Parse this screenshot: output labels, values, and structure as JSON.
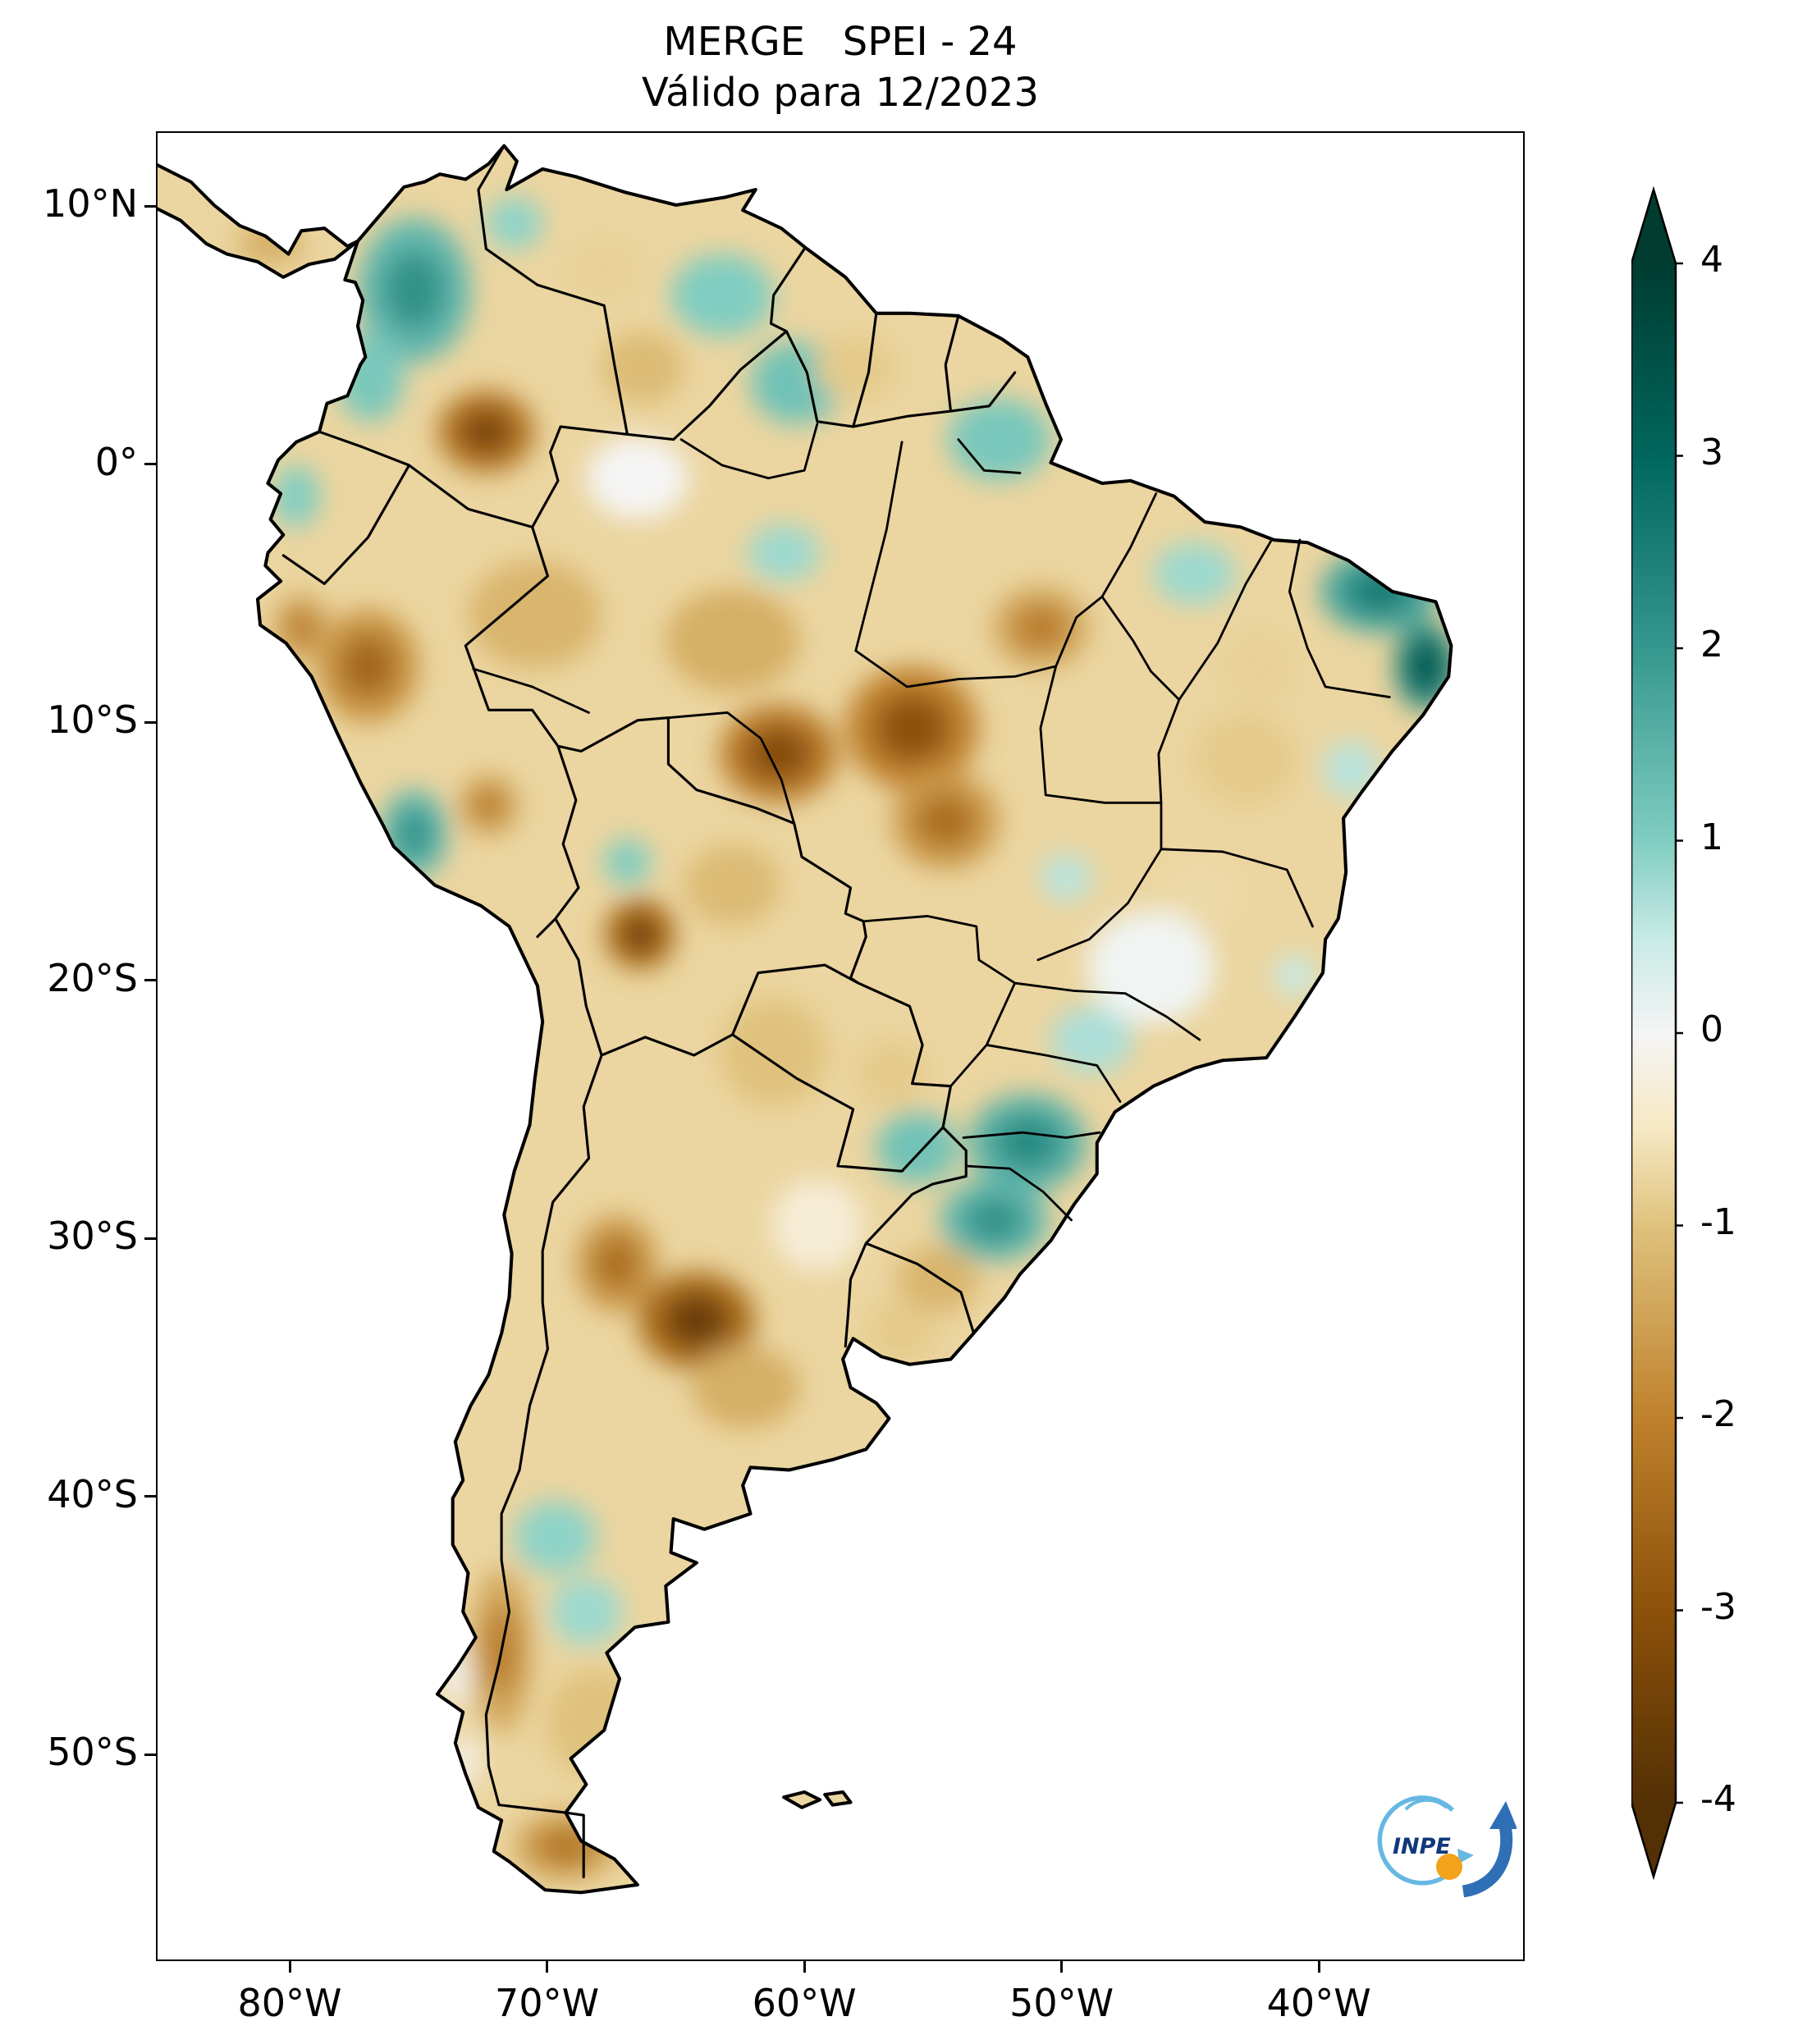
{
  "figure": {
    "title": "MERGE   SPEI - 24",
    "subtitle": "Válido para 12/2023"
  },
  "logo": {
    "text": "INPE"
  },
  "chart_data": {
    "type": "heatmap",
    "title": "MERGE   SPEI - 24",
    "subtitle": "Válido para 12/2023",
    "description": "SPEI-24 standardized drought index map over South America, valid for 12/2023, MERGE product",
    "base_spei": -0.75,
    "x_axis": {
      "tick_labels": [
        "80°W",
        "70°W",
        "60°W",
        "50°W",
        "40°W"
      ],
      "tick_lons": [
        -80,
        -70,
        -60,
        -50,
        -40
      ],
      "lon_range": [
        -85.2,
        -32.0
      ]
    },
    "y_axis": {
      "tick_labels": [
        "10°N",
        "0°",
        "10°S",
        "20°S",
        "30°S",
        "40°S",
        "50°S"
      ],
      "tick_lats": [
        10,
        0,
        -10,
        -20,
        -30,
        -40,
        -50
      ],
      "lat_range": [
        12.9,
        -58.0
      ]
    },
    "colorbar": {
      "vmin": -4,
      "vmax": 4,
      "extend": "both",
      "tick_labels": [
        "4",
        "3",
        "2",
        "1",
        "0",
        "-1",
        "-2",
        "-3",
        "-4"
      ],
      "tick_values": [
        4,
        3,
        2,
        1,
        0,
        -1,
        -2,
        -3,
        -4
      ],
      "colormap_stops": [
        {
          "value": -4,
          "color": "#543005"
        },
        {
          "value": -3,
          "color": "#8c510a"
        },
        {
          "value": -2,
          "color": "#bf812d"
        },
        {
          "value": -1,
          "color": "#dfc27d"
        },
        {
          "value": -0.5,
          "color": "#f6e8c3"
        },
        {
          "value": 0,
          "color": "#f5f5f5"
        },
        {
          "value": 0.5,
          "color": "#c7eae5"
        },
        {
          "value": 1,
          "color": "#80cdc1"
        },
        {
          "value": 2,
          "color": "#35978f"
        },
        {
          "value": 3,
          "color": "#01665e"
        },
        {
          "value": 4,
          "color": "#003c30"
        }
      ]
    },
    "regions": [
      {
        "name": "colombia-andes",
        "lon": -75.2,
        "lat": 6.8,
        "rx": 2.2,
        "ry": 2.8,
        "spei": 1.4
      },
      {
        "name": "colombia-pacific",
        "lon": -76.9,
        "lat": 3.4,
        "rx": 1.3,
        "ry": 1.7,
        "spei": 1.1
      },
      {
        "name": "ecuador-coast",
        "lon": -79.8,
        "lat": -1.2,
        "rx": 0.9,
        "ry": 1.2,
        "spei": 1.0
      },
      {
        "name": "maracaibo-venezuela",
        "lon": -71.3,
        "lat": 9.4,
        "rx": 1.1,
        "ry": 1.0,
        "spei": 0.9
      },
      {
        "name": "venezuela-northeast",
        "lon": -63.2,
        "lat": 6.6,
        "rx": 2.0,
        "ry": 1.6,
        "spei": 1.0
      },
      {
        "name": "roraima-guyana-border",
        "lon": -60.3,
        "lat": 3.2,
        "rx": 1.8,
        "ry": 1.6,
        "spei": 1.2
      },
      {
        "name": "amapa-north-para",
        "lon": -52.4,
        "lat": 1.0,
        "rx": 2.0,
        "ry": 1.6,
        "spei": 1.1
      },
      {
        "name": "central-amazon",
        "lon": -60.8,
        "lat": -3.4,
        "rx": 1.4,
        "ry": 1.1,
        "spei": 0.8
      },
      {
        "name": "maranhao",
        "lon": -44.8,
        "lat": -4.2,
        "rx": 1.6,
        "ry": 1.2,
        "spei": 0.8
      },
      {
        "name": "ceara-coast",
        "lon": -37.6,
        "lat": -4.9,
        "rx": 2.3,
        "ry": 1.6,
        "spei": 1.7
      },
      {
        "name": "pernambuco-coast",
        "lon": -35.8,
        "lat": -7.8,
        "rx": 1.2,
        "ry": 1.7,
        "spei": 2.3
      },
      {
        "name": "bahia-coast",
        "lon": -38.7,
        "lat": -11.8,
        "rx": 1.1,
        "ry": 1.1,
        "spei": 0.6
      },
      {
        "name": "peru-south-andes",
        "lon": -75.2,
        "lat": -14.3,
        "rx": 1.3,
        "ry": 1.7,
        "spei": 1.4
      },
      {
        "name": "bolivia-santa-cruz",
        "lon": -66.9,
        "lat": -15.4,
        "rx": 0.9,
        "ry": 0.9,
        "spei": 1.0
      },
      {
        "name": "goias",
        "lon": -49.8,
        "lat": -16.0,
        "rx": 1.0,
        "ry": 0.9,
        "spei": 0.6
      },
      {
        "name": "espirito-santo-coast",
        "lon": -40.9,
        "lat": -19.8,
        "rx": 0.8,
        "ry": 0.8,
        "spei": 0.5
      },
      {
        "name": "sao-paulo-interior",
        "lon": -48.8,
        "lat": -22.3,
        "rx": 1.6,
        "ry": 1.3,
        "spei": 0.7
      },
      {
        "name": "parana-santa-catarina",
        "lon": -51.3,
        "lat": -26.3,
        "rx": 2.3,
        "ry": 1.9,
        "spei": 1.5
      },
      {
        "name": "misiones-east-paraguay",
        "lon": -55.6,
        "lat": -26.5,
        "rx": 1.6,
        "ry": 1.4,
        "spei": 1.2
      },
      {
        "name": "rio-grande-do-sul",
        "lon": -52.6,
        "lat": -29.3,
        "rx": 2.1,
        "ry": 1.6,
        "spei": 1.4
      },
      {
        "name": "north-patagonia",
        "lon": -69.7,
        "lat": -41.6,
        "rx": 1.6,
        "ry": 1.4,
        "spei": 0.9
      },
      {
        "name": "central-patagonia",
        "lon": -68.5,
        "lat": -44.5,
        "rx": 1.4,
        "ry": 1.3,
        "spei": 0.8
      },
      {
        "name": "costa-rica-panama",
        "lon": -80.8,
        "lat": 8.6,
        "rx": 1.3,
        "ry": 0.8,
        "spei": -1.3
      },
      {
        "name": "venezuela-llanos",
        "lon": -67.8,
        "lat": 7.6,
        "rx": 1.6,
        "ry": 1.2,
        "spei": -0.8
      },
      {
        "name": "guyana-interior",
        "lon": -58.0,
        "lat": 3.8,
        "rx": 1.6,
        "ry": 1.3,
        "spei": -0.9
      },
      {
        "name": "south-venezuela",
        "lon": -66.3,
        "lat": 3.8,
        "rx": 1.6,
        "ry": 1.4,
        "spei": -1.1
      },
      {
        "name": "southeast-colombia",
        "lon": -72.4,
        "lat": 1.3,
        "rx": 1.9,
        "ry": 1.6,
        "spei": -2.2
      },
      {
        "name": "west-amazon",
        "lon": -70.5,
        "lat": -5.8,
        "rx": 2.6,
        "ry": 2.1,
        "spei": -1.2
      },
      {
        "name": "north-peru",
        "lon": -77.0,
        "lat": -7.8,
        "rx": 2.0,
        "ry": 2.2,
        "spei": -1.7
      },
      {
        "name": "peru-coast",
        "lon": -79.6,
        "lat": -6.3,
        "rx": 1.1,
        "ry": 1.3,
        "spei": -1.4
      },
      {
        "name": "central-amazon-south",
        "lon": -62.8,
        "lat": -6.8,
        "rx": 2.6,
        "ry": 2.0,
        "spei": -1.3
      },
      {
        "name": "east-para",
        "lon": -50.8,
        "lat": -6.3,
        "rx": 1.9,
        "ry": 1.6,
        "spei": -1.4
      },
      {
        "name": "piaui-interior",
        "lon": -42.3,
        "lat": -7.8,
        "rx": 1.5,
        "ry": 1.5,
        "spei": -0.8
      },
      {
        "name": "rondonia",
        "lon": -61.0,
        "lat": -11.2,
        "rx": 2.3,
        "ry": 1.9,
        "spei": -2.1
      },
      {
        "name": "mato-grosso-north",
        "lon": -55.8,
        "lat": -10.2,
        "rx": 2.6,
        "ry": 2.4,
        "spei": -2.0
      },
      {
        "name": "peru-southeast",
        "lon": -72.3,
        "lat": -13.2,
        "rx": 1.2,
        "ry": 1.2,
        "spei": -1.4
      },
      {
        "name": "mato-grosso",
        "lon": -54.5,
        "lat": -13.8,
        "rx": 2.1,
        "ry": 1.9,
        "spei": -1.6
      },
      {
        "name": "bolivia-lowlands",
        "lon": -62.8,
        "lat": -16.3,
        "rx": 1.9,
        "ry": 1.6,
        "spei": -1.1
      },
      {
        "name": "bolivia-andes",
        "lon": -66.4,
        "lat": -18.2,
        "rx": 1.4,
        "ry": 1.4,
        "spei": -2.3
      },
      {
        "name": "bahia-interior",
        "lon": -42.8,
        "lat": -11.4,
        "rx": 2.0,
        "ry": 1.8,
        "spei": -0.9
      },
      {
        "name": "north-minas-gerais",
        "lon": -44.6,
        "lat": -16.6,
        "rx": 1.6,
        "ry": 1.4,
        "spei": -0.7
      },
      {
        "name": "chaco",
        "lon": -61.2,
        "lat": -22.8,
        "rx": 2.1,
        "ry": 2.1,
        "spei": -1.0
      },
      {
        "name": "paraguay-east",
        "lon": -56.6,
        "lat": -23.6,
        "rx": 1.4,
        "ry": 1.3,
        "spei": -0.9
      },
      {
        "name": "cuyo-argentina",
        "lon": -67.3,
        "lat": -31.0,
        "rx": 1.6,
        "ry": 1.9,
        "spei": -1.6
      },
      {
        "name": "cordoba-argentina",
        "lon": -64.2,
        "lat": -33.2,
        "rx": 2.3,
        "ry": 1.9,
        "spei": -2.4
      },
      {
        "name": "pampa",
        "lon": -62.3,
        "lat": -35.8,
        "rx": 2.1,
        "ry": 1.6,
        "spei": -1.3
      },
      {
        "name": "uruguay-brazil-border",
        "lon": -54.8,
        "lat": -31.6,
        "rx": 1.6,
        "ry": 1.3,
        "spei": -1.2
      },
      {
        "name": "uruguay",
        "lon": -56.2,
        "lat": -33.6,
        "rx": 1.4,
        "ry": 1.2,
        "spei": -0.9
      },
      {
        "name": "south-chile-border",
        "lon": -71.8,
        "lat": -46.0,
        "rx": 1.2,
        "ry": 3.2,
        "spei": -1.4
      },
      {
        "name": "patagonia-coast",
        "lon": -68.2,
        "lat": -48.8,
        "rx": 1.9,
        "ry": 2.1,
        "spei": -1.0
      },
      {
        "name": "tierra-del-fuego",
        "lon": -69.3,
        "lat": -53.6,
        "rx": 2.0,
        "ry": 1.3,
        "spei": -1.5
      },
      {
        "name": "upper-rio-negro",
        "lon": -66.5,
        "lat": -0.5,
        "rx": 2.0,
        "ry": 1.6,
        "spei": 0.0
      },
      {
        "name": "east-brazil-neutral",
        "lon": -46.5,
        "lat": -19.5,
        "rx": 2.5,
        "ry": 2.2,
        "spei": 0.05
      },
      {
        "name": "argentina-northeast",
        "lon": -59.5,
        "lat": -29.5,
        "rx": 1.8,
        "ry": 1.8,
        "spei": -0.3
      },
      {
        "name": "patagonia-icefield-north",
        "lon": -73.6,
        "lat": -47.0,
        "rx": 0.5,
        "ry": 1.2,
        "spei": 0.0
      },
      {
        "name": "patagonia-icefield-south",
        "lon": -73.2,
        "lat": -50.3,
        "rx": 0.5,
        "ry": 1.0,
        "spei": 0.0
      }
    ]
  }
}
